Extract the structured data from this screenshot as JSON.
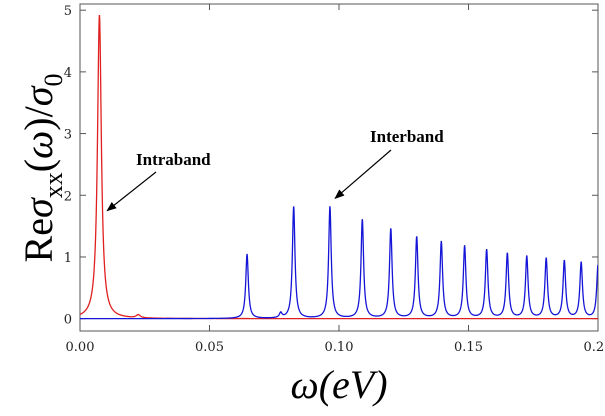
{
  "chart_data": {
    "type": "line",
    "xlabel": "ω(eV)",
    "ylabel": "Reσ_xx(ω)/σ_0",
    "xlim": [
      0.0,
      0.2
    ],
    "ylim": [
      -0.2,
      5.1
    ],
    "xticks": [
      "0.00",
      "0.05",
      "0.10",
      "0.15",
      "0.20"
    ],
    "xtick_values": [
      0.0,
      0.05,
      0.1,
      0.15,
      0.2
    ],
    "yticks": [
      "0",
      "1",
      "2",
      "3",
      "4",
      "5"
    ],
    "ytick_values": [
      0,
      1,
      2,
      3,
      4,
      5
    ],
    "grid": false,
    "series": [
      {
        "color": "#e02020",
        "peaks": [
          {
            "x": 0.0075,
            "y": 4.92,
            "width": 0.0009
          },
          {
            "x": 0.0225,
            "y": 0.05,
            "width": 0.0009
          }
        ]
      },
      {
        "color": "#1515d8",
        "peaks": [
          {
            "x": 0.0645,
            "y": 1.04,
            "width": 0.0006
          },
          {
            "x": 0.0775,
            "y": 0.08,
            "width": 0.0006
          },
          {
            "x": 0.0825,
            "y": 1.81,
            "width": 0.0006
          },
          {
            "x": 0.0965,
            "y": 1.81,
            "width": 0.0006
          },
          {
            "x": 0.109,
            "y": 1.6,
            "width": 0.0006
          },
          {
            "x": 0.12,
            "y": 1.45,
            "width": 0.0006
          },
          {
            "x": 0.13,
            "y": 1.32,
            "width": 0.0006
          },
          {
            "x": 0.1395,
            "y": 1.24,
            "width": 0.0006
          },
          {
            "x": 0.1485,
            "y": 1.17,
            "width": 0.0006
          },
          {
            "x": 0.157,
            "y": 1.11,
            "width": 0.0006
          },
          {
            "x": 0.165,
            "y": 1.05,
            "width": 0.0006
          },
          {
            "x": 0.1725,
            "y": 1.0,
            "width": 0.0006
          },
          {
            "x": 0.18,
            "y": 0.97,
            "width": 0.0006
          },
          {
            "x": 0.187,
            "y": 0.93,
            "width": 0.0006
          },
          {
            "x": 0.1935,
            "y": 0.9,
            "width": 0.0006
          },
          {
            "x": 0.2,
            "y": 0.86,
            "width": 0.0006
          }
        ]
      }
    ],
    "annotations": [
      {
        "text": "Intraband",
        "target_x": 0.0105,
        "target_y": 1.75
      },
      {
        "text": "Interband",
        "target_x": 0.0985,
        "target_y": 1.95
      }
    ]
  }
}
